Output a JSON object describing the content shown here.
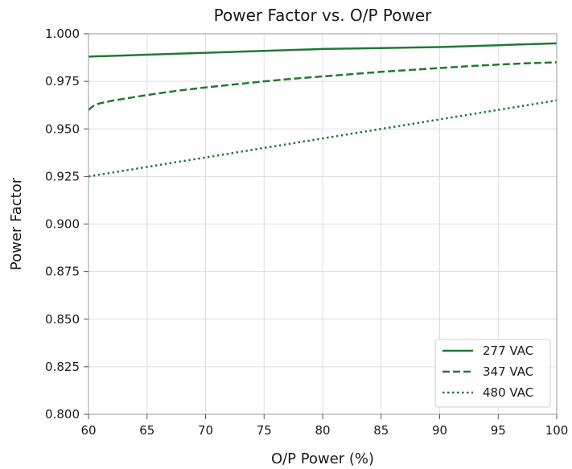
{
  "chart_data": {
    "type": "line",
    "title": "Power Factor vs. O/P Power",
    "xlabel": "O/P Power (%)",
    "ylabel": "Power Factor",
    "xlim": [
      60,
      100
    ],
    "ylim": [
      0.8,
      1.0
    ],
    "x_ticks": [
      "60",
      "65",
      "70",
      "75",
      "80",
      "85",
      "90",
      "95",
      "100"
    ],
    "y_ticks": [
      "0.800",
      "0.825",
      "0.850",
      "0.875",
      "0.900",
      "0.925",
      "0.950",
      "0.975",
      "1.000"
    ],
    "grid": true,
    "legend_position": "bottom-right",
    "series": [
      {
        "name": "277 VAC",
        "style": "solid",
        "color": "#217a33",
        "x": [
          60,
          65,
          70,
          75,
          80,
          85,
          90,
          95,
          100
        ],
        "y": [
          0.988,
          0.989,
          0.99,
          0.991,
          0.992,
          0.9925,
          0.993,
          0.994,
          0.995
        ]
      },
      {
        "name": "347 VAC",
        "style": "dashed",
        "color": "#217a33",
        "x": [
          60,
          60.5,
          61,
          62,
          63,
          65,
          67.5,
          70,
          72.5,
          75,
          77.5,
          80,
          82.5,
          85,
          87.5,
          90,
          92.5,
          95,
          97.5,
          100
        ],
        "y": [
          0.96,
          0.9625,
          0.9635,
          0.9648,
          0.9658,
          0.9678,
          0.97,
          0.9718,
          0.9734,
          0.975,
          0.9764,
          0.9776,
          0.9788,
          0.98,
          0.981,
          0.982,
          0.983,
          0.9838,
          0.9845,
          0.985
        ]
      },
      {
        "name": "480 VAC",
        "style": "dotted",
        "color": "#217a33",
        "x": [
          60,
          65,
          70,
          75,
          80,
          85,
          90,
          95,
          100
        ],
        "y": [
          0.925,
          0.93,
          0.935,
          0.94,
          0.945,
          0.95,
          0.955,
          0.96,
          0.965
        ]
      }
    ]
  }
}
